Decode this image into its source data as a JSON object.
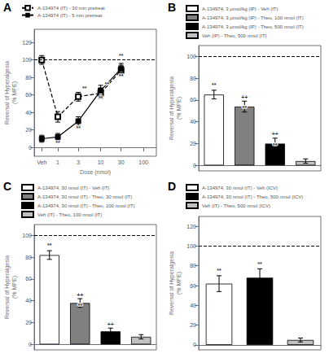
{
  "chart_data": [
    {
      "type": "line",
      "title": "A",
      "xlabel": "Dose (nmol)",
      "ylabel": "Reversal of Hyperalgesia\n(% MPE)",
      "log": "x",
      "x": [
        0.42,
        1,
        3,
        10,
        30
      ],
      "xlim": [
        0.28,
        200
      ],
      "xticks": [
        {
          "value": 0.42,
          "label": "Veh"
        },
        1,
        3,
        10,
        30,
        100
      ],
      "ylim": [
        -10,
        135
      ],
      "yticks": [
        0,
        20,
        40,
        60,
        80,
        100,
        120
      ],
      "grid": false,
      "legend": "top",
      "dashed_line": 100,
      "series": [
        {
          "name": "A-134974 (IT) - 30 min pretreat",
          "color": "#000000",
          "marker": "hollow square",
          "line_style": "dashed",
          "values": [
            100,
            35,
            58,
            62,
            88
          ],
          "errors": [
            5,
            6,
            5,
            6,
            6
          ]
        },
        {
          "name": "A-134974 (IT) - 5 min pretreat",
          "color": "#000000",
          "marker": "square",
          "line_style": "solid",
          "values": [
            10,
            12,
            30,
            65,
            90
          ],
          "errors": [
            4,
            4,
            5,
            6,
            6
          ]
        }
      ],
      "annotations": [
        {
          "text": "**",
          "x": 1,
          "y": 2
        },
        {
          "text": "**",
          "x": 3,
          "y": 19
        },
        {
          "text": "**",
          "x": 10,
          "y": 53
        },
        {
          "text": "**",
          "x": 30,
          "y": 78
        },
        {
          "text": "**",
          "x": 30,
          "y": 102
        },
        {
          "text": "**",
          "x": 4.2,
          "y": 64
        },
        {
          "text": "**",
          "x": 14,
          "y": 69
        }
      ]
    },
    {
      "type": "bar",
      "title": "B",
      "ylabel": "Reversal of Hyperalgesia\n(% MPE)",
      "categories": [
        "A-134974, 3 μmol/kg (IP) - Veh (IT)",
        "A-134974, 3 μmol/kg (IP) - Theo, 100 nmol (IT)",
        "A-134974, 3 μmol/kg (IP) - Theo, 500 nmol (IT)",
        "Veh (IP) - Theo, 500 nmol (IT)"
      ],
      "values": [
        65,
        54,
        20,
        4
      ],
      "errors": [
        4,
        5,
        5,
        2
      ],
      "colors": [
        "#ffffff",
        "#808080",
        "#000000",
        "#c0c0c0"
      ],
      "ylim": [
        -5,
        110
      ],
      "yticks": [
        0,
        20,
        40,
        60,
        80,
        100
      ],
      "grid": false,
      "legend": "top",
      "tick_labels": "y",
      "dashed_line": 100,
      "annotations": [
        {
          "text": "**",
          "x": "A-134974, 3 μmol/kg (IP) - Veh (IT)",
          "y": 71
        },
        {
          "text": "++",
          "x": "A-134974, 3 μmol/kg (IP) - Theo, 100 nmol (IT)",
          "y": 60
        },
        {
          "text": "**",
          "x": "A-134974, 3 μmol/kg (IP) - Theo, 100 nmol (IT)",
          "y": 50
        },
        {
          "text": "++",
          "x": "A-134974, 3 μmol/kg (IP) - Theo, 500 nmol (IT)",
          "y": 26
        },
        {
          "text": "**",
          "x": "A-134974, 3 μmol/kg (IP) - Theo, 500 nmol (IT)",
          "y": 16
        }
      ]
    },
    {
      "type": "bar",
      "title": "C",
      "ylabel": "Reversal of Hyperalgesia\n(% MPE)",
      "categories": [
        "A-134974, 30 nmol (IT) - Veh (IT)",
        "A-134974, 30 nmol (IT) - Theo, 30 nmol (IT)",
        "A-134974, 30 nmol (IT) - Theo, 100 nmol (IT)",
        "Veh (IT) - Theo, 100 nmol (IT)"
      ],
      "values": [
        82,
        38,
        12,
        7
      ],
      "errors": [
        4,
        4,
        3,
        2
      ],
      "colors": [
        "#ffffff",
        "#808080",
        "#000000",
        "#c0c0c0"
      ],
      "ylim": [
        -5,
        110
      ],
      "yticks": [
        0,
        20,
        40,
        60,
        80,
        100
      ],
      "grid": false,
      "legend": "top",
      "tick_labels": "y",
      "dashed_line": 100,
      "annotations": [
        {
          "text": "**",
          "x": "A-134974, 30 nmol (IT) - Veh (IT)",
          "y": 88
        },
        {
          "text": "++",
          "x": "A-134974, 30 nmol (IT) - Theo, 30 nmol (IT)",
          "y": 43
        },
        {
          "text": "**",
          "x": "A-134974, 30 nmol (IT) - Theo, 30 nmol (IT)",
          "y": 33
        },
        {
          "text": "++",
          "x": "A-134974, 30 nmol (IT) - Theo, 100 nmol (IT)",
          "y": 16
        }
      ]
    },
    {
      "type": "bar",
      "title": "D",
      "ylabel": "Reversal of Hyperalgesia\n(% MPE)",
      "categories": [
        "A-134974, 30 nmol (IT) - Veh (ICV)",
        "A-134974, 30 nmol (IT) - Theo, 500 nmol (ICV)",
        "Veh (IT) - Theo, 500 nmol (ICV)"
      ],
      "values": [
        62,
        68,
        5
      ],
      "errors": [
        8,
        9,
        2
      ],
      "colors": [
        "#ffffff",
        "#000000",
        "#c0c0c0"
      ],
      "ylim": [
        -5,
        130
      ],
      "yticks": [
        0,
        20,
        40,
        60,
        80,
        100,
        120
      ],
      "grid": false,
      "legend": "top",
      "tick_labels": "y",
      "dashed_line": 100,
      "annotations": [
        {
          "text": "**",
          "x": "A-134974, 30 nmol (IT) - Veh (ICV)",
          "y": 72
        },
        {
          "text": "**",
          "x": "A-134974, 30 nmol (IT) - Theo, 500 nmol (ICV)",
          "y": 79
        }
      ]
    }
  ]
}
